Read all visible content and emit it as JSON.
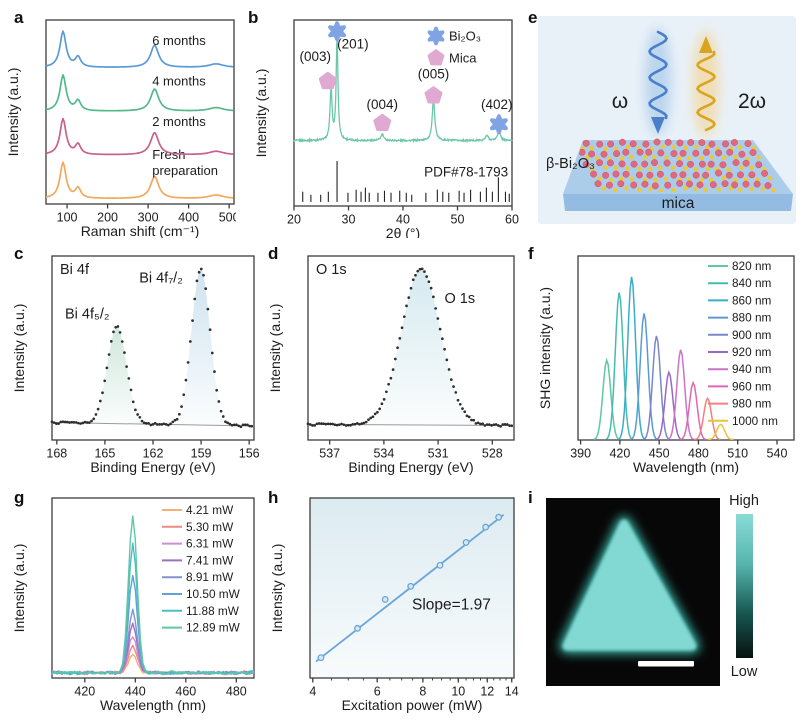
{
  "letters": {
    "a": "a",
    "b": "b",
    "c": "c",
    "d": "d",
    "e": "e",
    "f": "f",
    "g": "g",
    "h": "h",
    "i": "i"
  },
  "chart_data": [
    {
      "id": "a",
      "type": "line",
      "title": "Raman spectra stability over time",
      "xlabel": "Raman shift (cm⁻¹)",
      "ylabel": "Intensity (a.u.)",
      "xlim": [
        48,
        512
      ],
      "xticks": [
        100,
        200,
        300,
        400,
        500
      ],
      "ylim": [
        -0.1,
        3.9
      ],
      "peak_shape": [
        {
          "c": 90,
          "h": 1.0,
          "w": 9
        },
        {
          "c": 127,
          "h": 0.28,
          "w": 8
        },
        {
          "c": 316,
          "h": 0.62,
          "w": 12
        },
        {
          "c": 468,
          "h": 0.1,
          "w": 22
        }
      ],
      "peak_scale": 0.78,
      "series": [
        {
          "label": "Fresh preparation",
          "label_lines": [
            "Fresh",
            "preparation"
          ],
          "color": "#f2a95c",
          "offset": 0,
          "ly": 0.755
        },
        {
          "label": "2 months",
          "label_lines": [
            "2 months"
          ],
          "color": "#c9608f",
          "offset": 0.95,
          "ly": 0.575
        },
        {
          "label": "4 months",
          "label_lines": [
            "4 months"
          ],
          "color": "#53b98c",
          "offset": 1.9,
          "ly": 0.355
        },
        {
          "label": "6 months",
          "label_lines": [
            "6 months"
          ],
          "color": "#5b9bd5",
          "offset": 2.85,
          "ly": 0.135
        }
      ],
      "label_lx": 0.565
    },
    {
      "id": "b",
      "type": "line",
      "title": "XRD pattern",
      "xlabel": "2θ (°)",
      "ylabel": "Intensity (a.u.)",
      "xlim": [
        20,
        60
      ],
      "xticks": [
        20,
        30,
        40,
        50,
        60
      ],
      "ylim": [
        -0.62,
        1.2
      ],
      "curve_color": "#6cc7a8",
      "peaks": [
        [
          26.8,
          0.5,
          0.22
        ],
        [
          27.9,
          1.0,
          0.2
        ],
        [
          36.2,
          0.06,
          0.3
        ],
        [
          45.6,
          0.4,
          0.28
        ],
        [
          55.4,
          0.05,
          0.3
        ],
        [
          57.6,
          0.1,
          0.3
        ]
      ],
      "annotations": [
        {
          "text": "(003)",
          "x": 23.9,
          "y": 0.8
        },
        {
          "text": "(201)",
          "x": 30.8,
          "y": 0.92
        },
        {
          "text": "(004)",
          "x": 36.2,
          "y": 0.33
        },
        {
          "text": "(005)",
          "x": 45.6,
          "y": 0.63
        },
        {
          "text": "(402)",
          "x": 57.2,
          "y": 0.33
        }
      ],
      "markers": [
        {
          "kind": "pentagon",
          "x": 26.2,
          "y": 0.6
        },
        {
          "kind": "star",
          "x": 27.9,
          "y": 1.09
        },
        {
          "kind": "pentagon",
          "x": 36.2,
          "y": 0.19
        },
        {
          "kind": "pentagon",
          "x": 45.6,
          "y": 0.46
        },
        {
          "kind": "star",
          "x": 57.6,
          "y": 0.18
        }
      ],
      "marker_colors": {
        "star": "#7fa3e3",
        "pentagon": "#dfa9d1"
      },
      "legend": [
        {
          "kind": "star",
          "label": "Bi₂O₃"
        },
        {
          "kind": "pentagon",
          "label": "Mica"
        }
      ],
      "ref_label": "PDF#78-1793",
      "ref_sticks": [
        [
          21.6,
          0.1
        ],
        [
          23.1,
          0.07
        ],
        [
          24.9,
          0.07
        ],
        [
          26.3,
          0.1
        ],
        [
          27.9,
          0.4
        ],
        [
          29.9,
          0.09
        ],
        [
          31.4,
          0.12
        ],
        [
          32.3,
          0.1
        ],
        [
          33.1,
          0.14
        ],
        [
          33.8,
          0.09
        ],
        [
          35.4,
          0.09
        ],
        [
          36.6,
          0.11
        ],
        [
          37.8,
          0.09
        ],
        [
          39.4,
          0.11
        ],
        [
          40.6,
          0.09
        ],
        [
          41.6,
          0.07
        ],
        [
          44.2,
          0.09
        ],
        [
          46.3,
          0.12
        ],
        [
          47.3,
          0.1
        ],
        [
          48.4,
          0.09
        ],
        [
          50.3,
          0.11
        ],
        [
          51.2,
          0.09
        ],
        [
          52.4,
          0.12
        ],
        [
          54.2,
          0.1
        ],
        [
          55.3,
          0.14
        ],
        [
          56.4,
          0.1
        ],
        [
          57.5,
          0.24
        ],
        [
          58.8,
          0.1
        ],
        [
          59.5,
          0.08
        ]
      ]
    },
    {
      "id": "c",
      "type": "scatter-fit",
      "title": "Bi 4f",
      "xlabel": "Binding Energy (eV)",
      "ylabel": "Intensity (a.u.)",
      "xlim": [
        168.3,
        155.7
      ],
      "xticks": [
        168,
        165,
        162,
        159,
        156
      ],
      "ylim": [
        -0.06,
        1.12
      ],
      "dot_color": "#2e2e2e",
      "baseline": [
        0.052,
        0.03
      ],
      "peaks": [
        {
          "center": 164.25,
          "sigma": 0.6,
          "height": 0.62,
          "fill": "#cfe7dd"
        },
        {
          "center": 159.02,
          "sigma": 0.58,
          "height": 1.0,
          "fill": "#cfe3f0"
        }
      ],
      "fill_split": 161.6,
      "annotations": [
        {
          "text": "Bi 4f₅/₂",
          "x": 166.1,
          "y": 0.72
        },
        {
          "text": "Bi 4f₇/₂",
          "x": 161.5,
          "y": 0.95
        }
      ]
    },
    {
      "id": "d",
      "type": "scatter-fit",
      "title": "O 1s",
      "xlabel": "Binding Energy (eV)",
      "ylabel": "Intensity (a.u.)",
      "xlim": [
        538.2,
        526.8
      ],
      "xticks": [
        537,
        534,
        531,
        528
      ],
      "ylim": [
        -0.06,
        1.12
      ],
      "dot_color": "#2e2e2e",
      "baseline": [
        0.04,
        0.033
      ],
      "peaks": [
        {
          "center": 531.95,
          "sigma": 1.08,
          "height": 1.0,
          "fill": "#d5eaf0"
        }
      ],
      "fill_split": null,
      "annotations": [
        {
          "text": "O 1s",
          "x": 529.8,
          "y": 0.82
        }
      ]
    },
    {
      "id": "f",
      "type": "line",
      "title": "Wavelength-dependent SHG",
      "xlabel": "Wavelength (nm)",
      "ylabel": "SHG intensity (a.u.)",
      "xlim": [
        388,
        553
      ],
      "xticks": [
        390,
        420,
        450,
        480,
        510,
        540
      ],
      "ylim": [
        0,
        1.06
      ],
      "peak_sigma": 3.0,
      "series": [
        {
          "label": "820 nm",
          "color": "#5fc7a4",
          "center": 410,
          "height": 0.46
        },
        {
          "label": "840 nm",
          "color": "#45bcb0",
          "center": 419.5,
          "height": 0.85
        },
        {
          "label": "860 nm",
          "color": "#3badc9",
          "center": 429,
          "height": 0.94
        },
        {
          "label": "880 nm",
          "color": "#5b9bd5",
          "center": 438.5,
          "height": 0.73
        },
        {
          "label": "900 nm",
          "color": "#7a87cb",
          "center": 448,
          "height": 0.6
        },
        {
          "label": "920 nm",
          "color": "#9a68c4",
          "center": 457.5,
          "height": 0.39
        },
        {
          "label": "940 nm",
          "color": "#c874c8",
          "center": 466.5,
          "height": 0.52
        },
        {
          "label": "960 nm",
          "color": "#e066b4",
          "center": 476,
          "height": 0.33
        },
        {
          "label": "980 nm",
          "color": "#f28080",
          "center": 487,
          "height": 0.24
        },
        {
          "label": "1000 nm",
          "color": "#e9c23e",
          "center": 497,
          "height": 0.09
        }
      ]
    },
    {
      "id": "g",
      "type": "line",
      "title": "Power-dependent SHG spectra",
      "xlabel": "Wavelength (nm)",
      "ylabel": "Intensity (a.u.)",
      "xlim": [
        407,
        487
      ],
      "xticks": [
        420,
        440,
        460,
        480
      ],
      "ylim": [
        -0.03,
        1.0
      ],
      "peak_center": 439,
      "peak_sigma": 1.7,
      "noise": 0.013,
      "series": [
        {
          "label": "4.21 mW",
          "color": "#f5b078",
          "height": 0.1
        },
        {
          "label": "5.30 mW",
          "color": "#f08a80",
          "height": 0.15
        },
        {
          "label": "6.31 mW",
          "color": "#cf8ed0",
          "height": 0.21
        },
        {
          "label": "7.41 mW",
          "color": "#9a70c4",
          "height": 0.28
        },
        {
          "label": "8.91 mW",
          "color": "#8492cf",
          "height": 0.36
        },
        {
          "label": "10.50 mW",
          "color": "#64a0d8",
          "height": 0.56
        },
        {
          "label": "11.88 mW",
          "color": "#4cbfc4",
          "height": 0.74
        },
        {
          "label": "12.89 mW",
          "color": "#5fc7a4",
          "height": 0.9
        }
      ]
    },
    {
      "id": "h",
      "type": "scatter-line-loglog",
      "title": "SHG power dependence",
      "xlabel": "Excitation power (mW)",
      "ylabel": "Intensity (a.u.)",
      "xlim": [
        3.93,
        14.2
      ],
      "xticks": [
        4,
        6,
        8,
        10,
        12,
        14
      ],
      "loglim": [
        -0.14,
        1.1
      ],
      "points": [
        4.21,
        5.3,
        6.31,
        7.41,
        8.91,
        10.5,
        11.88,
        12.89
      ],
      "residuals": [
        0,
        0.005,
        0.055,
        0.008,
        -0.005,
        0.012,
        0.012,
        0.01
      ],
      "slope": 1.97,
      "annotation": "Slope=1.97",
      "color": "#6aa5d8",
      "bg_top": "#dcebf1",
      "bg_bottom": "#f8fbfc"
    }
  ],
  "schematic": {
    "labels": {
      "omega": "ω",
      "two_omega": "2ω",
      "material": "β-Bi₂O₃",
      "substrate": "mica"
    },
    "colors": {
      "bg": "#e9f1f8",
      "incident": "#4a7fc9",
      "incident_glow": "#b9d4ee",
      "shg": "#d9a520",
      "shg_glow": "#f0ddb2",
      "slab_top": "#abcdea",
      "slab_front": "#94bce2",
      "atom_pink": "#e0697e",
      "atom_pink_edge": "#c94f66",
      "atom_yellow": "#ecc832"
    }
  },
  "shg_map": {
    "high_label": "High",
    "low_label": "Low",
    "triangle_color": "#82d9d3",
    "glow_color": "#35a99c",
    "bg": "#070707",
    "colorbar": [
      "#8adbd6",
      "#56b5ae",
      "#17544f",
      "#06120f"
    ]
  }
}
